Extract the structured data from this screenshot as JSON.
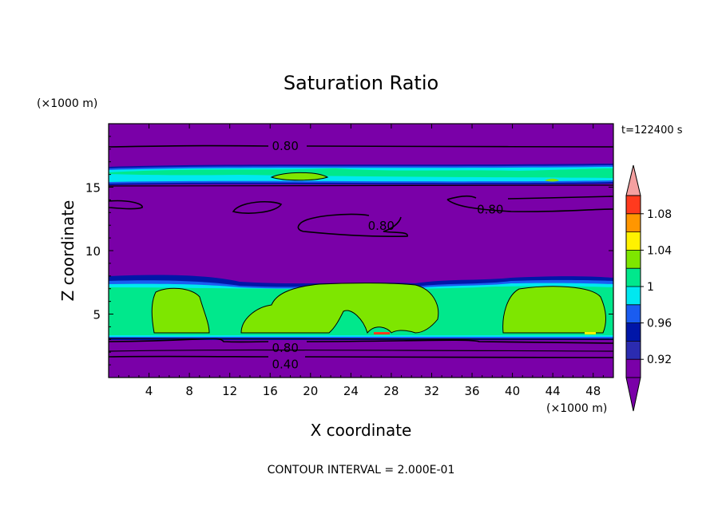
{
  "chart_data": {
    "type": "heatmap",
    "title": "Saturation Ratio",
    "xlabel": "X coordinate",
    "ylabel": "Z coordinate",
    "x_unit_label": "(×1000 m)",
    "y_unit_label": "(×1000 m)",
    "time_label": "t=122400 s",
    "footer": "CONTOUR INTERVAL = 2.000E-01",
    "xlim": [
      0,
      50
    ],
    "ylim": [
      0,
      20
    ],
    "x_ticks": [
      4,
      8,
      12,
      16,
      20,
      24,
      28,
      32,
      36,
      40,
      44,
      48
    ],
    "y_ticks": [
      5,
      10,
      15
    ],
    "colorbar": {
      "levels": [
        0.9,
        0.92,
        0.94,
        0.96,
        0.98,
        1.0,
        1.02,
        1.04,
        1.06,
        1.08,
        1.1
      ],
      "tick_labels": [
        "0.92",
        "0.96",
        "1",
        "1.04",
        "1.08"
      ],
      "tick_values": [
        0.92,
        0.96,
        1.0,
        1.04,
        1.08
      ],
      "colors": [
        "#7a00a8",
        "#2b2bb0",
        "#0016a8",
        "#1a5cf0",
        "#00e8f0",
        "#00e88c",
        "#7ee600",
        "#fff200",
        "#ff9600",
        "#ff3a1e",
        "#f4a0a0"
      ],
      "extend": "both"
    },
    "contour_labels": [
      {
        "text": "0.80",
        "x": 17.5,
        "z": 18.3
      },
      {
        "text": "0.80",
        "x": 37.8,
        "z": 13.3
      },
      {
        "text": "0.80",
        "x": 27.0,
        "z": 12.0
      },
      {
        "text": "0.80",
        "x": 17.5,
        "z": 2.4
      },
      {
        "text": "0.40",
        "x": 17.5,
        "z": 1.1
      }
    ],
    "bands": [
      {
        "z": [
          0,
          3.3
        ],
        "value": 0.8
      },
      {
        "z": [
          3.3,
          7.2
        ],
        "value": 0.98
      },
      {
        "z": [
          7.2,
          15.3
        ],
        "value": 0.8
      },
      {
        "z": [
          15.3,
          17.2
        ],
        "value": 0.96
      },
      {
        "z": [
          17.2,
          20
        ],
        "value": 0.8
      }
    ]
  }
}
